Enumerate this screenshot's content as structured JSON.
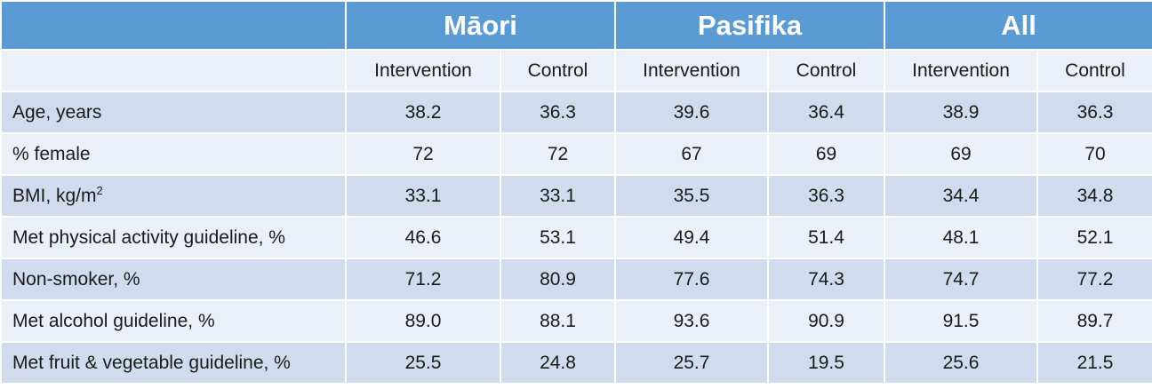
{
  "groups": [
    "Māori",
    "Pasifika",
    "All"
  ],
  "subheaders": [
    "Intervention",
    "Control",
    "Intervention",
    "Control",
    "Intervention",
    "Control"
  ],
  "rows": [
    {
      "label": "Age, years",
      "values": [
        "38.2",
        "36.3",
        "39.6",
        "36.4",
        "38.9",
        "36.3"
      ]
    },
    {
      "label": "% female",
      "values": [
        "72",
        "72",
        "67",
        "69",
        "69",
        "70"
      ]
    },
    {
      "label": "BMI, kg/m",
      "label_sup": "2",
      "values": [
        "33.1",
        "33.1",
        "35.5",
        "36.3",
        "34.4",
        "34.8"
      ]
    },
    {
      "label": "Met physical activity guideline, %",
      "values": [
        "46.6",
        "53.1",
        "49.4",
        "51.4",
        "48.1",
        "52.1"
      ]
    },
    {
      "label": "Non-smoker, %",
      "values": [
        "71.2",
        "80.9",
        "77.6",
        "74.3",
        "74.7",
        "77.2"
      ]
    },
    {
      "label": "Met alcohol guideline, %",
      "values": [
        "89.0",
        "88.1",
        "93.6",
        "90.9",
        "91.5",
        "89.7"
      ]
    },
    {
      "label": "Met fruit & vegetable guideline, %",
      "values": [
        "25.5",
        "24.8",
        "25.7",
        "19.5",
        "25.6",
        "21.5"
      ]
    }
  ]
}
